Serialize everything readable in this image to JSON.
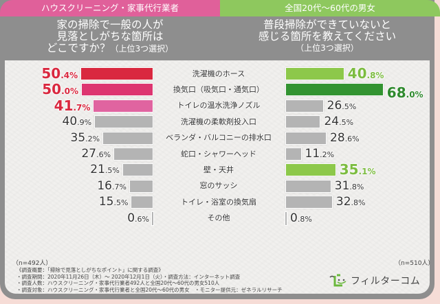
{
  "header": {
    "left_tab": "ハウスクリーニング・家事代行業者",
    "right_tab": "全国20代〜60代の男女",
    "left_question": [
      "家の掃除で一般の人が",
      "見落としがちな箇所は",
      "どこですか？"
    ],
    "left_question_suffix": "（上位3つ選択）",
    "right_question": [
      "普段掃除ができていないと",
      "感じる箇所を教えてください"
    ],
    "right_question_suffix": "（上位3つ選択）"
  },
  "chart_data": {
    "type": "bar",
    "orientation": "horizontal-butterfly",
    "unit": "%",
    "categories": [
      "洗濯機のホース",
      "換気口（吸気口・通気口）",
      "トイレの温水洗浄ノズル",
      "洗濯機の柔軟剤投入口",
      "ベランダ・バルコニーの排水口",
      "蛇口・シャワーヘッド",
      "壁・天井",
      "窓のサッシ",
      "トイレ・浴室の換気扇",
      "その他"
    ],
    "series": [
      {
        "name": "ハウスクリーニング・家事代行業者",
        "side": "left",
        "n_label": "（n=492人）",
        "values": [
          50.4,
          50.0,
          41.7,
          40.9,
          35.2,
          27.6,
          21.5,
          16.7,
          15.5,
          0.6
        ],
        "highlight": [
          true,
          true,
          true,
          false,
          false,
          false,
          false,
          false,
          false,
          false
        ],
        "colors": [
          "#d9283f",
          "#dd3570",
          "#e064a0",
          "#b4b4b4",
          "#b4b4b4",
          "#b4b4b4",
          "#b4b4b4",
          "#b4b4b4",
          "#b4b4b4",
          "#b4b4b4"
        ],
        "label_color_highlight": "#d9283f"
      },
      {
        "name": "全国20代〜60代の男女",
        "side": "right",
        "n_label": "（n=510人）",
        "values": [
          40.8,
          68.0,
          26.5,
          24.5,
          28.6,
          11.2,
          35.1,
          31.8,
          32.8,
          0.8
        ],
        "highlight": [
          true,
          true,
          false,
          false,
          false,
          false,
          true,
          false,
          false,
          false
        ],
        "colors": [
          "#8dc84a",
          "#339331",
          "#b4b4b4",
          "#b4b4b4",
          "#b4b4b4",
          "#b4b4b4",
          "#8dc84a",
          "#b4b4b4",
          "#b4b4b4",
          "#b4b4b4"
        ],
        "label_colors_highlight": [
          "#7cbc40",
          "#2f8a2e",
          null,
          null,
          null,
          null,
          "#7cbc40",
          null,
          null,
          null
        ]
      }
    ],
    "xlim": [
      0,
      70
    ],
    "grid": false,
    "legend": "none"
  },
  "footer": {
    "notes": [
      "《調査概要：「掃除で見落としがちなポイント」に関する調査》",
      "・調査期間：2020年11月26日（木）〜 2020年12月1日（火）・調査方法：インターネット調査",
      "・調査人数：ハウスクリーニング・家事代行業者492人と全国20代〜60代の男女510人",
      "・調査対象：ハウスクリーニング・家事代行業者と全国20代〜60代の男女　・モニター提供元：ゼネラルリサーチ"
    ],
    "logo_text": "フィルターコム"
  }
}
